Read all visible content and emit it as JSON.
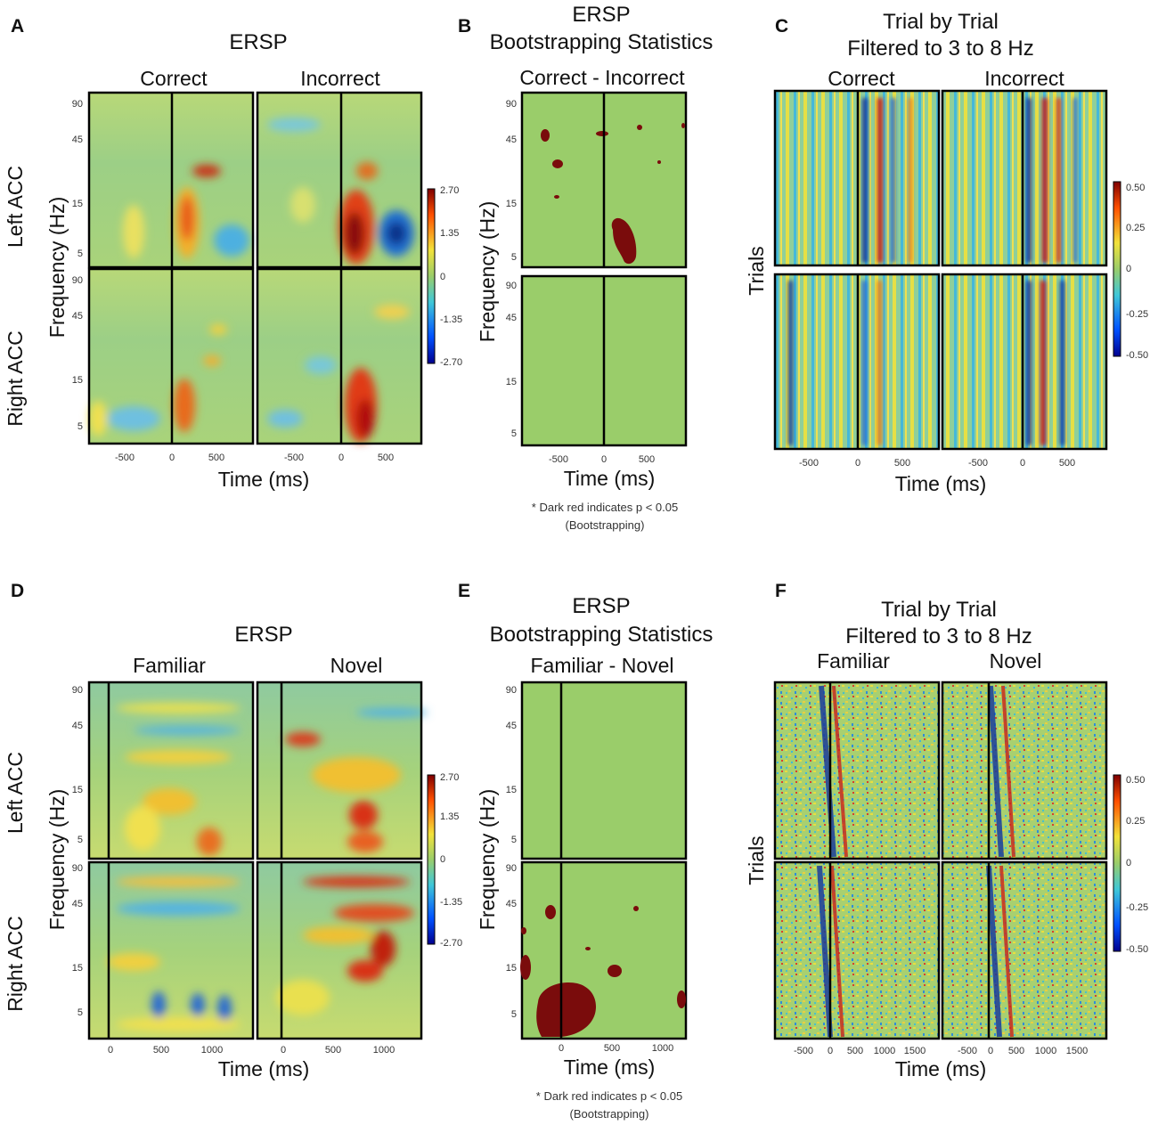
{
  "figure": {
    "colormap_ticks": [
      "2.70",
      "1.35",
      "0",
      "-1.35",
      "-2.70"
    ],
    "trial_colormap_ticks": [
      "0.50",
      "0.25",
      "0",
      "-0.25",
      "-0.50"
    ],
    "colors": {
      "field": "#9acd6a",
      "significant": "#7a0c0c",
      "hot": "#c8201a",
      "cold": "#1a3c9a"
    }
  },
  "panels": {
    "A": {
      "letter": "A",
      "title": "ERSP",
      "columns": [
        "Correct",
        "Incorrect"
      ],
      "rows": [
        "Left ACC",
        "Right ACC"
      ],
      "ylabel": "Frequency (Hz)",
      "xlabel": "Time (ms)",
      "freq_ticks": [
        "90",
        "45",
        "15",
        "5"
      ],
      "time_ticks": [
        "-500",
        "0",
        "500"
      ]
    },
    "B": {
      "letter": "B",
      "title_line1": "ERSP",
      "title_line2": "Bootstrapping Statistics",
      "contrast": "Correct - Incorrect",
      "ylabel": "Frequency (Hz)",
      "xlabel": "Time (ms)",
      "freq_ticks": [
        "90",
        "45",
        "15",
        "5"
      ],
      "time_ticks": [
        "-500",
        "0",
        "500"
      ],
      "note_line1": "* Dark red indicates p < 0.05",
      "note_line2": "(Bootstrapping)"
    },
    "C": {
      "letter": "C",
      "title_line1": "Trial by Trial",
      "title_line2": "Filtered to 3 to 8 Hz",
      "columns": [
        "Correct",
        "Incorrect"
      ],
      "ylabel": "Trials",
      "xlabel": "Time (ms)",
      "time_ticks": [
        "-500",
        "0",
        "500"
      ]
    },
    "D": {
      "letter": "D",
      "title": "ERSP",
      "columns": [
        "Familiar",
        "Novel"
      ],
      "rows": [
        "Left ACC",
        "Right ACC"
      ],
      "ylabel": "Frequency (Hz)",
      "xlabel": "Time (ms)",
      "freq_ticks": [
        "90",
        "45",
        "15",
        "5"
      ],
      "time_ticks": [
        "0",
        "500",
        "1000"
      ]
    },
    "E": {
      "letter": "E",
      "title_line1": "ERSP",
      "title_line2": "Bootstrapping Statistics",
      "contrast": "Familiar - Novel",
      "ylabel": "Frequency (Hz)",
      "xlabel": "Time (ms)",
      "freq_ticks": [
        "90",
        "45",
        "15",
        "5"
      ],
      "time_ticks": [
        "0",
        "500",
        "1000"
      ],
      "note_line1": "* Dark red indicates p < 0.05",
      "note_line2": "(Bootstrapping)"
    },
    "F": {
      "letter": "F",
      "title_line1": "Trial by Trial",
      "title_line2": "Filtered to 3 to 8 Hz",
      "columns": [
        "Familiar",
        "Novel"
      ],
      "ylabel": "Trials",
      "xlabel": "Time (ms)",
      "time_ticks": [
        "-500",
        "0",
        "500",
        "1000",
        "1500"
      ]
    }
  }
}
